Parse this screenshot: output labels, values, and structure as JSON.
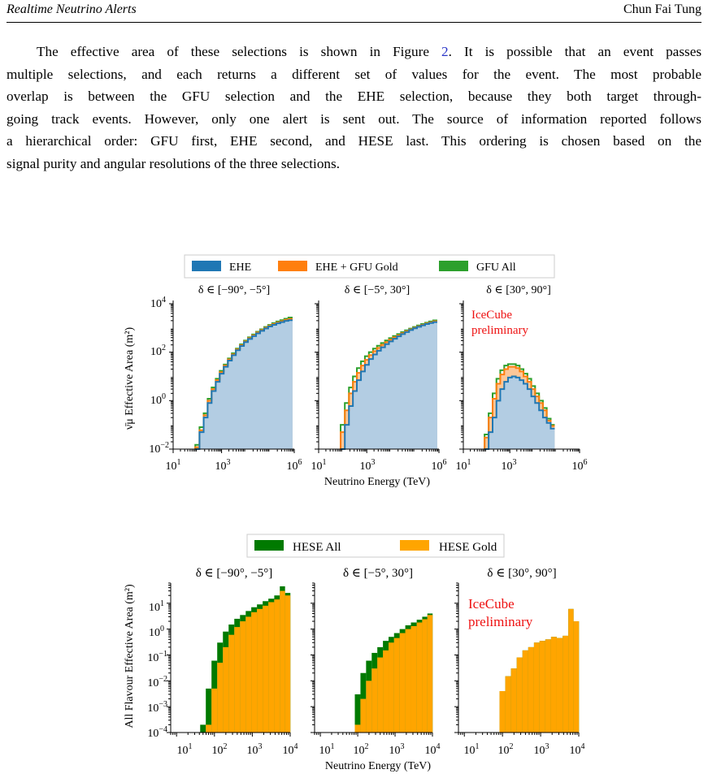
{
  "header": {
    "left": "Realtime Neutrino Alerts",
    "right": "Chun Fai Tung"
  },
  "paragraph": {
    "lines": [
      "The effective area of these selections is shown in Figure ",
      "multiple selections, and each returns a different set of values for the event.  The most probable",
      "overlap is between the GFU selection and the EHE selection, because they both target through-",
      "going track events. However, only one alert is sent out. The source of information reported follows",
      "a hierarchical order: GFU first, EHE second, and HESE last. This ordering is chosen based on the",
      "signal purity and angular resolutions of the three selections."
    ],
    "figure_ref": "2",
    "line1_tail": ". It is possible that an event passes"
  },
  "colors": {
    "ehe": "#1f77b4",
    "ehe_fill": "#b3cde3",
    "gfu_gold": "#ff7f0e",
    "gfu_gold_fill": "#fdc799",
    "gfu_all": "#2ca02c",
    "hese_all": "#007a00",
    "hese_gold": "#ffa500",
    "annotation": "#ee1111"
  },
  "figure1": {
    "legend": [
      "EHE",
      "EHE + GFU Gold",
      "GFU All"
    ],
    "panel_titles": [
      "δ ∈ [−90°, −5°]",
      "δ ∈ [−5°, 30°]",
      "δ ∈ [30°, 90°]"
    ],
    "ylabel": "ν̄μ Effective Area (m²)",
    "xlabel": "Neutrino Energy (TeV)",
    "annotation": [
      "IceCube",
      "preliminary"
    ],
    "y_ticks": [
      "10",
      "10",
      "10",
      "10"
    ],
    "y_tick_exps": [
      "4",
      "2",
      "0",
      "−2"
    ],
    "x_ticks": [
      "10",
      "10",
      "10"
    ],
    "x_tick_exps": [
      "1",
      "3",
      "6"
    ]
  },
  "figure2": {
    "legend": [
      "HESE All",
      "HESE Gold"
    ],
    "panel_titles": [
      "δ ∈ [−90°, −5°]",
      "δ ∈ [−5°, 30°]",
      "δ ∈ [30°, 90°]"
    ],
    "ylabel": "All Flavour Effective Area (m²)",
    "xlabel": "Neutrino Energy (TeV)",
    "annotation": [
      "IceCube",
      "preliminary"
    ],
    "y_ticks": [
      "10",
      "10",
      "10",
      "10",
      "10",
      "10"
    ],
    "y_tick_exps": [
      "1",
      "0",
      "−1",
      "−2",
      "−3",
      "−4"
    ],
    "x_ticks": [
      "10",
      "10",
      "10",
      "10"
    ],
    "x_tick_exps": [
      "1",
      "2",
      "3",
      "4"
    ]
  },
  "chart_data": [
    {
      "type": "area",
      "title": "",
      "xlabel": "Neutrino Energy (TeV)",
      "ylabel": "ν̄μ Effective Area (m²)",
      "x_scale": "log",
      "y_scale": "log",
      "xlim": [
        10,
        1000000
      ],
      "ylim": [
        0.01,
        10000
      ],
      "x": [
        100,
        150,
        220,
        320,
        470,
        700,
        1000,
        1500,
        2200,
        3200,
        4700,
        7000,
        10000,
        15000,
        22000,
        32000,
        47000,
        70000,
        100000,
        150000,
        220000,
        320000,
        470000,
        700000
      ],
      "panels": [
        {
          "title": "δ ∈ [−90°, −5°]",
          "series": [
            {
              "name": "EHE",
              "values": [
                0.01,
                0.05,
                0.2,
                0.8,
                2.5,
                6,
                13,
                25,
                45,
                75,
                120,
                180,
                260,
                350,
                460,
                600,
                760,
                950,
                1150,
                1350,
                1550,
                1750,
                1950,
                2100
              ]
            },
            {
              "name": "EHE + GFU Gold",
              "values": [
                0.012,
                0.06,
                0.25,
                1.0,
                3,
                7,
                15,
                28,
                50,
                82,
                130,
                195,
                280,
                380,
                500,
                650,
                820,
                1020,
                1230,
                1450,
                1680,
                1900,
                2150,
                2350
              ]
            },
            {
              "name": "GFU All",
              "values": [
                0.015,
                0.08,
                0.3,
                1.2,
                3.5,
                8,
                17,
                31,
                55,
                90,
                140,
                210,
                300,
                410,
                540,
                700,
                880,
                1100,
                1330,
                1580,
                1850,
                2100,
                2400,
                2700
              ]
            }
          ]
        },
        {
          "title": "δ ∈ [−5°, 30°]",
          "series": [
            {
              "name": "EHE",
              "values": [
                0.01,
                0.1,
                0.6,
                2.5,
                7,
                16,
                30,
                52,
                80,
                115,
                160,
                215,
                280,
                360,
                450,
                560,
                680,
                820,
                970,
                1120,
                1280,
                1450,
                1600,
                1750
              ]
            },
            {
              "name": "EHE + GFU Gold",
              "values": [
                0.05,
                0.4,
                2,
                6,
                14,
                28,
                48,
                76,
                110,
                150,
                200,
                260,
                330,
                410,
                500,
                610,
                730,
                870,
                1020,
                1180,
                1350,
                1530,
                1700,
                1880
              ]
            },
            {
              "name": "GFU All",
              "values": [
                0.1,
                0.8,
                3.5,
                10,
                22,
                42,
                68,
                100,
                140,
                185,
                240,
                305,
                380,
                465,
                560,
                670,
                800,
                940,
                1100,
                1270,
                1450,
                1650,
                1850,
                2050
              ]
            }
          ]
        },
        {
          "title": "δ ∈ [30°, 90°]",
          "series": [
            {
              "name": "EHE",
              "values": [
                0.01,
                0.05,
                0.2,
                1,
                3,
                6,
                9,
                10,
                9,
                7,
                5,
                3,
                1.5,
                0.8,
                0.4,
                0.2,
                0.12,
                0.07
              ]
            },
            {
              "name": "EHE + GFU Gold",
              "values": [
                0.03,
                0.2,
                1.2,
                5,
                12,
                20,
                25,
                25,
                22,
                16,
                10,
                6,
                3,
                1.5,
                0.8,
                0.4,
                0.15,
                0.09
              ]
            },
            {
              "name": "GFU All",
              "values": [
                0.04,
                0.3,
                2,
                8,
                18,
                28,
                32,
                32,
                28,
                20,
                13,
                8,
                4,
                2,
                1,
                0.5,
                0.18,
                0.1
              ]
            }
          ]
        }
      ]
    },
    {
      "type": "bar",
      "title": "",
      "xlabel": "Neutrino Energy (TeV)",
      "ylabel": "All Flavour Effective Area (m²)",
      "x_scale": "log",
      "y_scale": "log",
      "xlim": [
        10,
        10000
      ],
      "ylim": [
        0.0001,
        60
      ],
      "x": [
        25,
        35,
        50,
        70,
        100,
        140,
        200,
        280,
        400,
        560,
        800,
        1100,
        1600,
        2200,
        3200,
        4500,
        6300,
        8500
      ],
      "panels": [
        {
          "title": "δ ∈ [−90°, −5°]",
          "series": [
            {
              "name": "HESE All",
              "values": [
                0.0002,
                0.005,
                0.06,
                0.3,
                0.8,
                1.5,
                2.5,
                3.5,
                5,
                7,
                9,
                12,
                15,
                20,
                45,
                25
              ]
            },
            {
              "name": "HESE Gold",
              "values": [
                0.0001,
                0.0002,
                0.005,
                0.05,
                0.2,
                0.6,
                1.2,
                2,
                3,
                4.5,
                6,
                8,
                11,
                14,
                30,
                20
              ]
            }
          ]
        },
        {
          "title": "δ ∈ [−5°, 30°]",
          "series": [
            {
              "name": "HESE All",
              "values": [
                0.0001,
                0.003,
                0.02,
                0.06,
                0.12,
                0.2,
                0.35,
                0.5,
                0.7,
                1,
                1.4,
                1.8,
                2.3,
                3,
                4
              ]
            },
            {
              "name": "HESE Gold",
              "values": [
                0.0001,
                0.0002,
                0.002,
                0.01,
                0.03,
                0.08,
                0.15,
                0.3,
                0.45,
                0.7,
                1,
                1.3,
                1.8,
                2.4,
                3.5
              ]
            }
          ]
        },
        {
          "title": "δ ∈ [30°, 90°]",
          "series": [
            {
              "name": "HESE All",
              "values": [
                0.0001,
                0.004,
                0.015,
                0.03,
                0.08,
                0.15,
                0.2,
                0.3,
                0.35,
                0.4,
                0.5,
                0.45,
                0.55,
                6,
                2
              ]
            },
            {
              "name": "HESE Gold",
              "values": [
                0.0001,
                0.004,
                0.015,
                0.03,
                0.08,
                0.15,
                0.2,
                0.3,
                0.35,
                0.4,
                0.5,
                0.45,
                0.55,
                6,
                2
              ]
            }
          ]
        }
      ]
    }
  ]
}
